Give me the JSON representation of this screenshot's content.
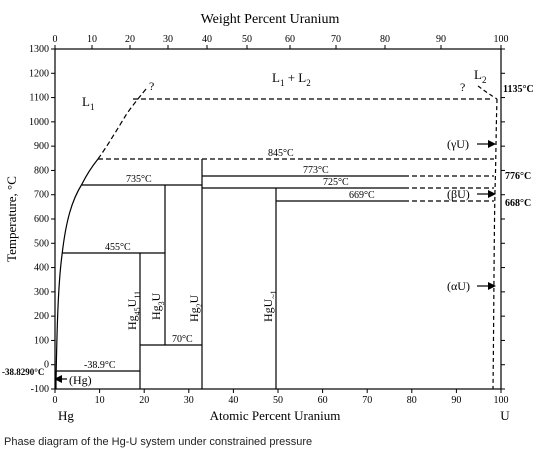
{
  "figure": {
    "top_axis_title": "Weight Percent Uranium",
    "bottom_axis_title": "Atomic Percent Uranium",
    "y_axis_title": "Temperature, °C",
    "caption": "Phase diagram of the Hg-U system under constrained pressure"
  },
  "axes": {
    "y_ticks": [
      "1300",
      "1200",
      "1100",
      "1000",
      "900",
      "800",
      "700",
      "600",
      "500",
      "400",
      "300",
      "200",
      "100",
      "0",
      "-100"
    ],
    "x_bottom_ticks": [
      "0",
      "10",
      "20",
      "30",
      "40",
      "50",
      "60",
      "70",
      "80",
      "90",
      "100"
    ],
    "x_top_ticks": [
      "0",
      "10",
      "20",
      "30",
      "40",
      "50",
      "60",
      "70",
      "80",
      "90",
      "100"
    ],
    "left_element": "Hg",
    "right_element": "U"
  },
  "phase_labels": {
    "l1": "L",
    "l1_sub": "1",
    "l1l2": "L",
    "l1l2_sub1": "1",
    "l1l2_plus": " + L",
    "l1l2_sub2": "2",
    "l2": "L",
    "l2_sub": "2",
    "q_left": "?",
    "q_right": "?",
    "gamma_u": "(γU)",
    "beta_u": "(βU)",
    "alpha_u": "(αU)",
    "hg_solid": "(Hg)"
  },
  "temperatures": {
    "t1135": "1135°C",
    "t845": "845°C",
    "t776": "776°C",
    "t773": "773°C",
    "t735": "735°C",
    "t725": "725°C",
    "t669": "669°C",
    "t668": "668°C",
    "t455": "455°C",
    "t70": "70°C",
    "tm389": "-38.9°C",
    "tm3829": "-38.8290°C"
  },
  "compounds": {
    "hg45u11": {
      "base": "Hg",
      "s1": "45",
      "mid": "U",
      "s2": "11"
    },
    "hg3u": {
      "base": "Hg",
      "s1": "3",
      "mid": "U"
    },
    "hg2u": {
      "base": "Hg",
      "s1": "2",
      "mid": "U"
    },
    "hgu1": {
      "base": "HgU",
      "s1": "~1"
    }
  }
}
